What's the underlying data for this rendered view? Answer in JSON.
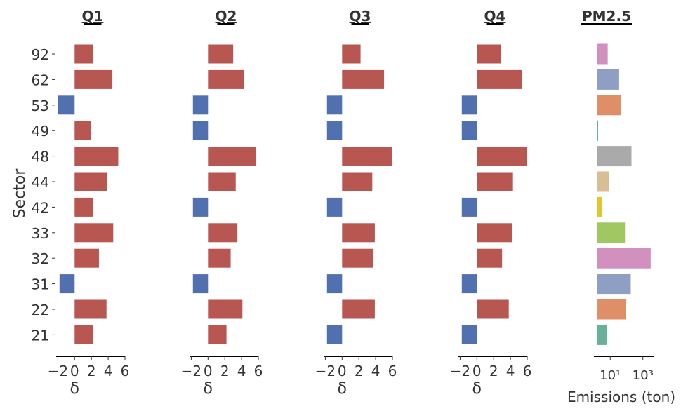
{
  "chart_data": {
    "type": "bar",
    "orientation": "horizontal",
    "ylabel": "Sector",
    "categories": [
      "92",
      "62",
      "53",
      "49",
      "48",
      "44",
      "42",
      "33",
      "32",
      "31",
      "22",
      "21"
    ],
    "positive_color": "#b85652",
    "negative_color": "#5170b0",
    "panels": [
      {
        "title": "Q1",
        "xlabel": "δ",
        "xlim": [
          -2.2,
          6
        ],
        "xticks": [
          -2,
          0,
          2,
          4,
          6
        ],
        "xtick_labels": [
          "−2",
          "0",
          "2",
          "4",
          "6"
        ],
        "values": [
          2.2,
          4.5,
          -2,
          1.9,
          5.2,
          3.9,
          2.2,
          4.6,
          2.9,
          -1.8,
          3.8,
          2.2
        ]
      },
      {
        "title": "Q2",
        "xlabel": "δ",
        "xlim": [
          -2.2,
          6
        ],
        "xticks": [
          -2,
          0,
          2,
          4,
          6
        ],
        "xtick_labels": [
          "−2",
          "0",
          "2",
          "4",
          "6"
        ],
        "values": [
          3.0,
          4.3,
          -1.8,
          -1.8,
          5.7,
          3.3,
          -1.8,
          3.5,
          2.7,
          -1.8,
          4.1,
          2.2
        ]
      },
      {
        "title": "Q3",
        "xlabel": "δ",
        "xlim": [
          -2.2,
          6
        ],
        "xticks": [
          -2,
          0,
          2,
          4,
          6
        ],
        "xtick_labels": [
          "−2",
          "0",
          "2",
          "4",
          "6"
        ],
        "values": [
          2.2,
          5.0,
          -1.8,
          -1.8,
          6.0,
          3.6,
          -1.8,
          3.9,
          3.7,
          -1.8,
          3.9,
          -1.8
        ]
      },
      {
        "title": "Q4",
        "xlabel": "δ",
        "xlim": [
          -2.2,
          6
        ],
        "xticks": [
          -2,
          0,
          2,
          4,
          6
        ],
        "xtick_labels": [
          "−2",
          "0",
          "2",
          "4",
          "6"
        ],
        "values": [
          2.9,
          5.4,
          -1.8,
          -1.8,
          6.0,
          4.3,
          -1.8,
          4.2,
          3.0,
          -1.8,
          3.8,
          -1.8
        ]
      }
    ],
    "emissions_panel": {
      "title": "PM2.5",
      "xlabel": "Emissions (ton)",
      "scale": "log",
      "xlim": [
        1,
        5000
      ],
      "xticks": [
        10,
        1000
      ],
      "xtick_labels": [
        "10¹",
        "10³"
      ],
      "values": [
        7,
        35,
        45,
        1.3,
        200,
        8,
        3,
        80,
        3000,
        180,
        90,
        6
      ],
      "colors": [
        "#d290be",
        "#8f9fc4",
        "#df8f68",
        "#68b096",
        "#aaaaaa",
        "#d8bd95",
        "#e2c62e",
        "#a0c761",
        "#d290be",
        "#8f9fc4",
        "#df8f68",
        "#68b096"
      ]
    }
  }
}
